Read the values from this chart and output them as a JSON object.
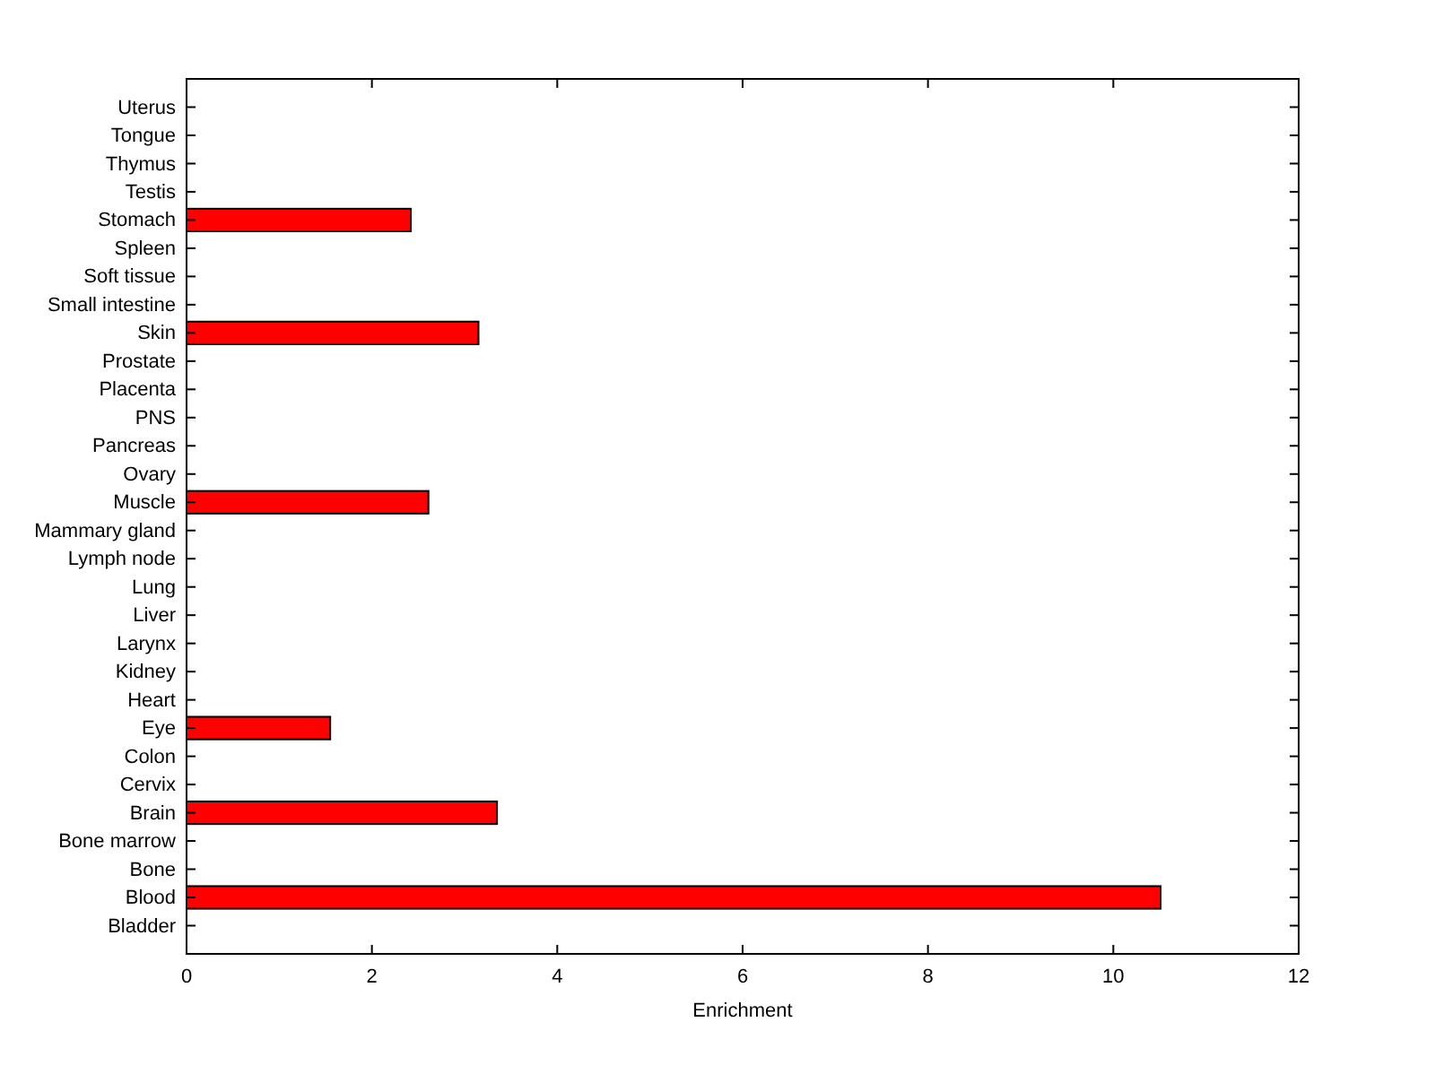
{
  "chart_data": {
    "type": "bar",
    "orientation": "horizontal",
    "xlabel": "Enrichment",
    "categories": [
      "Uterus",
      "Tongue",
      "Thymus",
      "Testis",
      "Stomach",
      "Spleen",
      "Soft tissue",
      "Small intestine",
      "Skin",
      "Prostate",
      "Placenta",
      "PNS",
      "Pancreas",
      "Ovary",
      "Muscle",
      "Mammary gland",
      "Lymph node",
      "Lung",
      "Liver",
      "Larynx",
      "Kidney",
      "Heart",
      "Eye",
      "Colon",
      "Cervix",
      "Brain",
      "Bone marrow",
      "Bone",
      "Blood",
      "Bladder"
    ],
    "values": [
      0,
      0,
      0,
      0,
      2.42,
      0,
      0,
      0,
      3.15,
      0,
      0,
      0,
      0,
      0,
      2.61,
      0,
      0,
      0,
      0,
      0,
      0,
      0,
      1.55,
      0,
      0,
      3.35,
      0,
      0,
      10.51,
      0
    ],
    "color": "#ff0000",
    "xlim": [
      0,
      12
    ],
    "xticks": [
      0,
      2,
      4,
      6,
      8,
      10,
      12
    ],
    "grid": false
  }
}
